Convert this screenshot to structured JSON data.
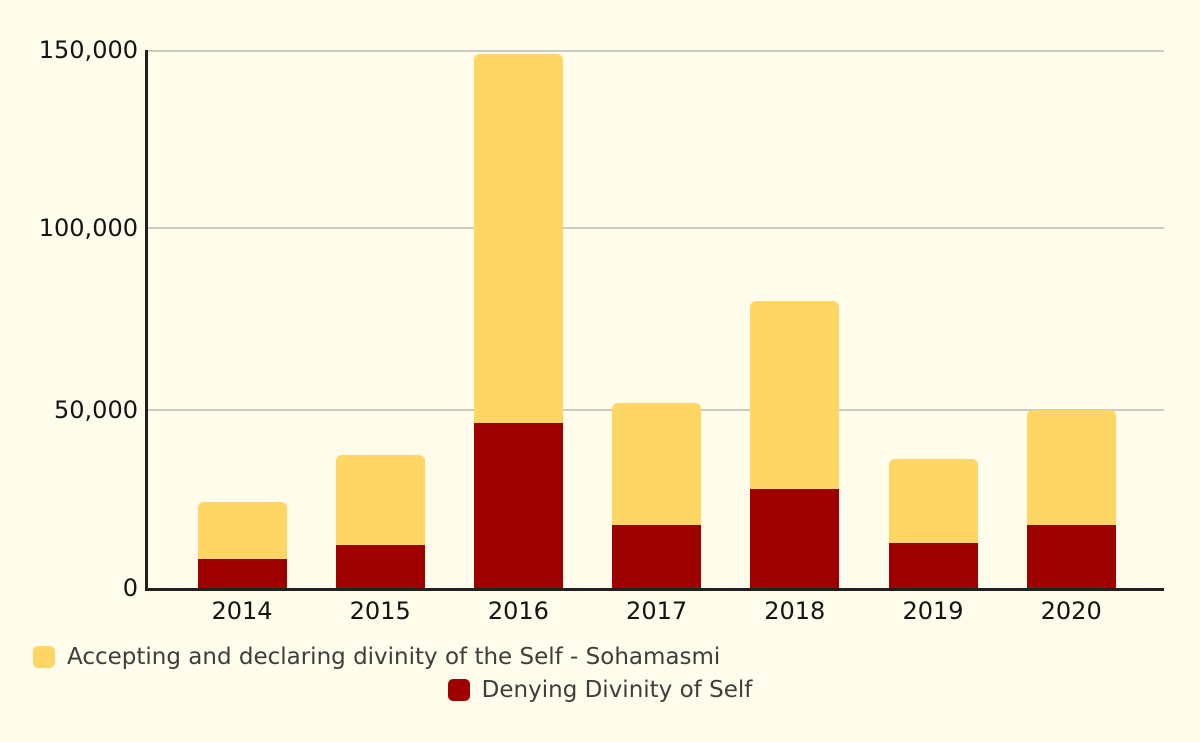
{
  "background_color": "#FFFCEB",
  "axis": {
    "line_color": "#212121",
    "grid_color": "#CBCBC2",
    "tick_label_color": "#141414"
  },
  "chart_data": {
    "type": "bar",
    "stacked": true,
    "title": "",
    "xlabel": "",
    "ylabel": "",
    "categories": [
      "2014",
      "2015",
      "2016",
      "2017",
      "2018",
      "2019",
      "2020"
    ],
    "series": [
      {
        "name": "Accepting and declaring divinity of the Self - Sohamasmi",
        "color": "#FDD663",
        "stack_position": "top",
        "values": [
          16000,
          25000,
          103000,
          34000,
          52500,
          23500,
          32000
        ]
      },
      {
        "name": "Denying Divinity of Self",
        "color": "#9E0000",
        "stack_position": "bottom",
        "values": [
          8000,
          12000,
          46000,
          17500,
          27500,
          12500,
          17500
        ]
      }
    ],
    "stack_totals": [
      24000,
      37000,
      149000,
      51500,
      80000,
      36000,
      49500
    ],
    "ylim": [
      0,
      150000
    ],
    "yticks": [
      0,
      50000,
      100000,
      150000
    ],
    "ytick_labels": [
      "0",
      "50,000",
      "100,000",
      "150,000"
    ],
    "grid": true,
    "legend_position": "bottom"
  }
}
